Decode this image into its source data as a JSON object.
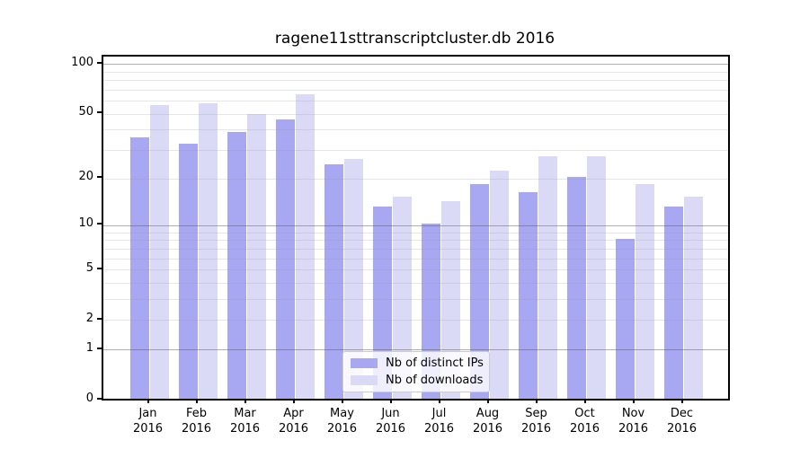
{
  "chart_data": {
    "type": "bar",
    "title": "ragene11sttranscriptcluster.db 2016",
    "categories": [
      "Jan 2016",
      "Feb 2016",
      "Mar 2016",
      "Apr 2016",
      "May 2016",
      "Jun 2016",
      "Jul 2016",
      "Aug 2016",
      "Sep 2016",
      "Oct 2016",
      "Nov 2016",
      "Dec 2016"
    ],
    "series": [
      {
        "name": "Nb of distinct IPs",
        "color": "#a8a8f2",
        "values": [
          35,
          32,
          38,
          45,
          24,
          13,
          10,
          18,
          16,
          20,
          8,
          13
        ]
      },
      {
        "name": "Nb of downloads",
        "color": "#dadaf7",
        "values": [
          55,
          57,
          49,
          64,
          26,
          15,
          14,
          22,
          27,
          27,
          18,
          15
        ]
      }
    ],
    "y_ticks": [
      0,
      1,
      2,
      5,
      10,
      20,
      50,
      100
    ],
    "major_gridlines": [
      1,
      10,
      100
    ],
    "minor_gridlines": [
      2,
      3,
      4,
      5,
      6,
      7,
      8,
      9,
      20,
      30,
      40,
      50,
      60,
      70,
      80,
      90
    ],
    "scale": "log10(1+v)",
    "ylim": [
      0,
      110
    ],
    "grid": true,
    "legend_position": "lower-center-inside",
    "xlabel": "",
    "ylabel": ""
  },
  "colors": {
    "background": "#ffffff",
    "frame": "#000000",
    "text": "#000000",
    "legend_border": "#cccccc"
  }
}
